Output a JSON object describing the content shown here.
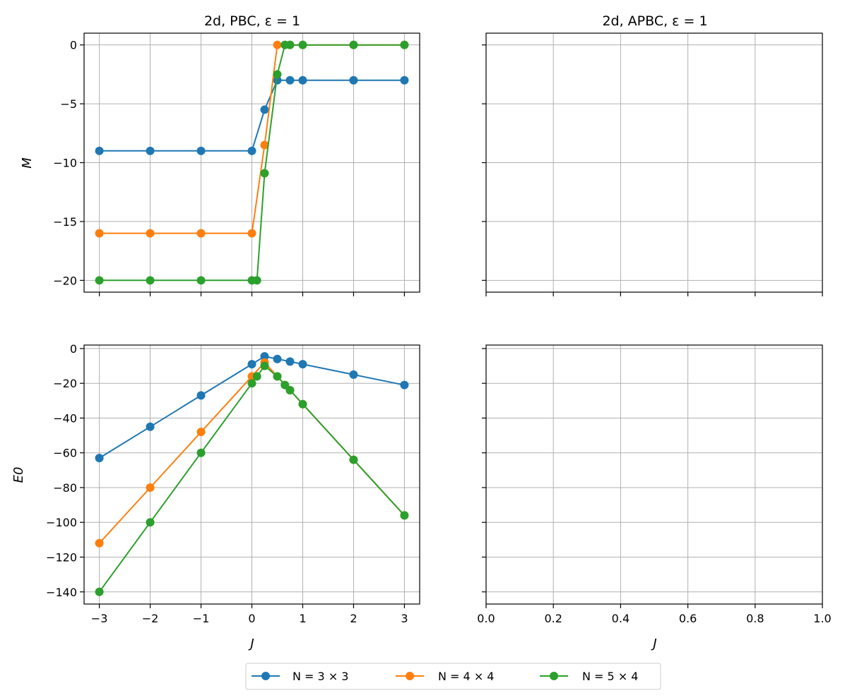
{
  "colors": {
    "series": [
      "#1f77b4",
      "#ff7f0e",
      "#2ca02c"
    ],
    "grid": "#b0b0b0"
  },
  "legend": {
    "placement": "bottom-center",
    "entries": [
      "N = 3 × 3",
      "N = 4 × 4",
      "N = 5 × 4"
    ]
  },
  "chart_data": [
    {
      "type": "line",
      "title": "2d, PBC, ε = 1",
      "xlabel": "",
      "ylabel": "M",
      "xlim": [
        -3.3,
        3.3
      ],
      "ylim": [
        -21,
        1
      ],
      "xticks": [
        -3,
        -2,
        -1,
        0,
        1,
        2,
        3
      ],
      "yticks": [
        0,
        -5,
        -10,
        -15,
        -20
      ],
      "xtick_labels_visible": false,
      "grid": true,
      "series": [
        {
          "name": "N = 3 × 3",
          "x": [
            -3,
            -2,
            -1,
            0,
            0.25,
            0.5,
            0.75,
            1,
            2,
            3
          ],
          "y": [
            -9,
            -9,
            -9,
            -9,
            -5.5,
            -3,
            -3,
            -3,
            -3,
            -3
          ]
        },
        {
          "name": "N = 4 × 4",
          "x": [
            -3,
            -2,
            -1,
            0,
            0.25,
            0.5,
            0.75,
            1,
            2,
            3
          ],
          "y": [
            -16,
            -16,
            -16,
            -16,
            -8.5,
            0,
            0,
            0,
            0,
            0
          ]
        },
        {
          "name": "N = 5 × 4",
          "x": [
            -3,
            -2,
            -1,
            0,
            0.1,
            0.25,
            0.5,
            0.65,
            0.75,
            1,
            2,
            3
          ],
          "y": [
            -20,
            -20,
            -20,
            -20,
            -20,
            -10.9,
            -2.5,
            0,
            0,
            0,
            0,
            0
          ]
        }
      ]
    },
    {
      "type": "line",
      "title": "2d, APBC, ε = 1",
      "xlabel": "",
      "ylabel": "",
      "xlim": [
        0,
        1
      ],
      "ylim": [
        -21,
        1
      ],
      "xticks": [
        0,
        0.2,
        0.4,
        0.6,
        0.8,
        1.0
      ],
      "yticks": [
        0,
        -5,
        -10,
        -15,
        -20
      ],
      "xtick_labels_visible": false,
      "ytick_labels_visible": false,
      "grid": true,
      "series": []
    },
    {
      "type": "line",
      "title": "",
      "xlabel": "J",
      "ylabel": "E0",
      "xlim": [
        -3.3,
        3.3
      ],
      "ylim": [
        -147,
        2
      ],
      "xticks": [
        -3,
        -2,
        -1,
        0,
        1,
        2,
        3
      ],
      "xtick_labels": [
        "−3",
        "−2",
        "−1",
        "0",
        "1",
        "2",
        "3"
      ],
      "yticks": [
        0,
        -20,
        -40,
        -60,
        -80,
        -100,
        -120,
        -140
      ],
      "ytick_labels": [
        "0",
        "−20",
        "−40",
        "−60",
        "−80",
        "−100",
        "−120",
        "−140"
      ],
      "grid": true,
      "series": [
        {
          "name": "N = 3 × 3",
          "x": [
            -3,
            -2,
            -1,
            0,
            0.25,
            0.5,
            0.75,
            1,
            2,
            3
          ],
          "y": [
            -63,
            -45,
            -27,
            -9,
            -4.5,
            -6,
            -7.5,
            -9,
            -15,
            -21
          ]
        },
        {
          "name": "N = 4 × 4",
          "x": [
            -3,
            -2,
            -1,
            0,
            0.25,
            0.5,
            0.75,
            1,
            2,
            3
          ],
          "y": [
            -112,
            -80,
            -48,
            -16,
            -8,
            -16,
            -24,
            -32,
            -64,
            -96
          ]
        },
        {
          "name": "N = 5 × 4",
          "x": [
            -3,
            -2,
            -1,
            0,
            0.1,
            0.25,
            0.5,
            0.65,
            0.75,
            1,
            2,
            3
          ],
          "y": [
            -140,
            -100,
            -60,
            -20,
            -16,
            -10,
            -16,
            -21,
            -24,
            -32,
            -64,
            -96
          ]
        }
      ]
    },
    {
      "type": "line",
      "title": "",
      "xlabel": "J",
      "ylabel": "",
      "xlim": [
        0,
        1
      ],
      "ylim": [
        -147,
        2
      ],
      "xticks": [
        0,
        0.2,
        0.4,
        0.6,
        0.8,
        1.0
      ],
      "xtick_labels": [
        "0.0",
        "0.2",
        "0.4",
        "0.6",
        "0.8",
        "1.0"
      ],
      "yticks": [
        0,
        -20,
        -40,
        -60,
        -80,
        -100,
        -120,
        -140
      ],
      "ytick_labels_visible": false,
      "grid": true,
      "series": []
    }
  ],
  "ytick_labels_top": [
    "0",
    "−5",
    "−10",
    "−15",
    "−20"
  ]
}
